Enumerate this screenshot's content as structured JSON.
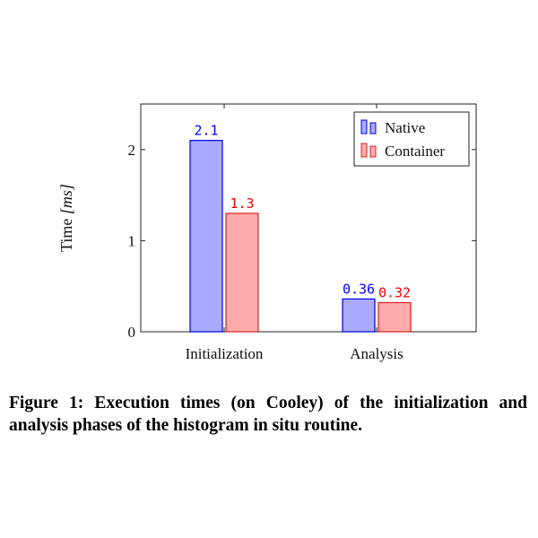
{
  "chart_data": {
    "type": "bar",
    "categories": [
      "Initialization",
      "Analysis"
    ],
    "series": [
      {
        "name": "Native",
        "values": [
          2.1,
          0.36
        ],
        "labels": [
          "2.1",
          "0.36"
        ],
        "fill": "#aaaaff",
        "stroke": "#0000ee",
        "label_color": "#0000ff"
      },
      {
        "name": "Container",
        "values": [
          1.3,
          0.32
        ],
        "labels": [
          "1.3",
          "0.32"
        ],
        "fill": "#ffaaaa",
        "stroke": "#e02020",
        "label_color": "#ee0000"
      }
    ],
    "ylabel_prefix": "Time ",
    "ylabel_unit": "[ms]",
    "ylim": [
      0,
      2.5
    ],
    "yticks": [
      0,
      1,
      2
    ],
    "ytick_labels": [
      "0",
      "1",
      "2"
    ],
    "grid": false,
    "legend_position": "top-right"
  },
  "caption": "Figure 1: Execution times (on Cooley) of the initialization and analysis phases of the histogram in situ routine."
}
